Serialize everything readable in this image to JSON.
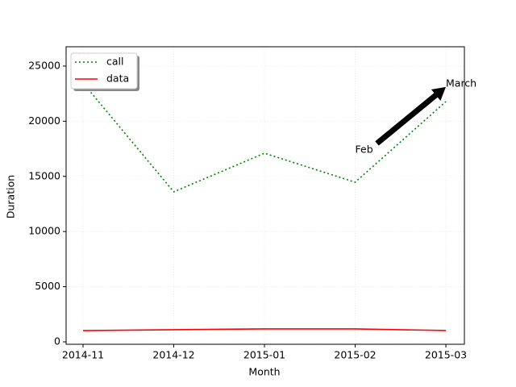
{
  "chart_data": {
    "type": "line",
    "categories": [
      "2014-11",
      "2014-12",
      "2015-01",
      "2015-02",
      "2015-03"
    ],
    "series": [
      {
        "name": "call",
        "color": "green",
        "linestyle": "dotted",
        "values": [
          23465,
          13600,
          17100,
          14470,
          21780
        ]
      },
      {
        "name": "data",
        "color": "red",
        "linestyle": "solid",
        "values": [
          1020,
          1100,
          1170,
          1170,
          1030
        ]
      }
    ],
    "xlabel": "Month",
    "ylabel": "Duration",
    "ylim": [
      -220,
      26750
    ],
    "yticks": [
      0,
      5000,
      10000,
      15000,
      20000,
      25000
    ],
    "grid": true,
    "legend": "upper left",
    "annotations": [
      {
        "text": "Feb",
        "x": "2015-02",
        "y": 17400
      },
      {
        "text": "March",
        "x": "2015-03",
        "y": 23400
      }
    ]
  }
}
